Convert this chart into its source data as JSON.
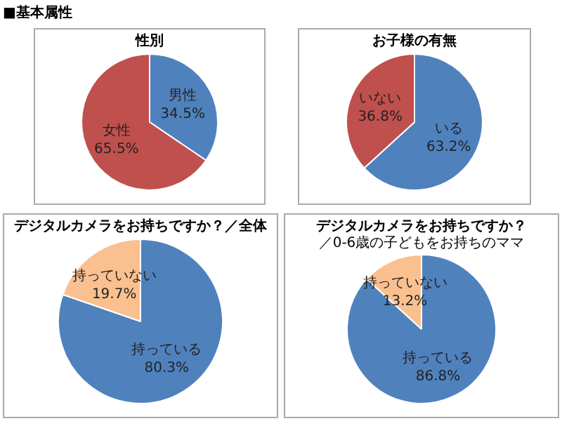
{
  "chart_data": [
    {
      "type": "pie",
      "title": "性別",
      "annotations": [
        "■基本属性"
      ],
      "categories": [
        "男性",
        "女性"
      ],
      "values": [
        34.5,
        65.5
      ],
      "value_labels": [
        "34.5%",
        "65.5%"
      ],
      "colors": [
        "#4f81bd",
        "#c0504d"
      ],
      "legend": false
    },
    {
      "type": "pie",
      "title": "お子様の有無",
      "categories": [
        "いる",
        "いない"
      ],
      "values": [
        63.2,
        36.8
      ],
      "value_labels": [
        "63.2%",
        "36.8%"
      ],
      "colors": [
        "#4f81bd",
        "#c0504d"
      ],
      "legend": false
    },
    {
      "type": "pie",
      "title": "デジタルカメラをお持ちですか？／全体",
      "categories": [
        "持っている",
        "持っていない"
      ],
      "values": [
        80.3,
        19.7
      ],
      "value_labels": [
        "80.3%",
        "19.7%"
      ],
      "colors": [
        "#4f81bd",
        "#fac090"
      ],
      "legend": false
    },
    {
      "type": "pie",
      "title": "デジタルカメラをお持ちですか？",
      "subtitle": "／0-6歳の子どもをお持ちのママ",
      "categories": [
        "持っている",
        "持っていない"
      ],
      "values": [
        86.8,
        13.2
      ],
      "value_labels": [
        "86.8%",
        "13.2%"
      ],
      "colors": [
        "#4f81bd",
        "#fac090"
      ],
      "legend": false
    }
  ]
}
